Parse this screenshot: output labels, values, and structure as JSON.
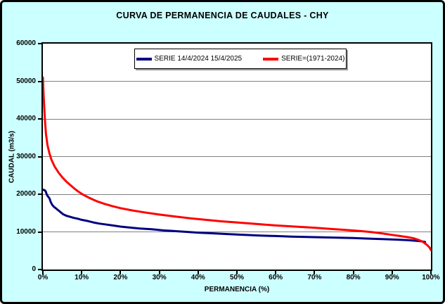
{
  "chart_data": {
    "type": "line",
    "title": "CURVA DE PERMANENCIA DE CAUDALES - CHY",
    "xlabel": "PERMANENCIA (%)",
    "ylabel": "CAUDAL (m3/s)",
    "xlim": [
      0,
      100
    ],
    "ylim": [
      0,
      60000
    ],
    "grid": "horizontal-only",
    "legend_position": "top-center-inside",
    "background_color": "#CCFFFF",
    "plot_background_color": "#FFFFFF",
    "gridline_color": "#808080",
    "x_ticks": [
      {
        "value": 0,
        "label": "0%"
      },
      {
        "value": 10,
        "label": "10%"
      },
      {
        "value": 20,
        "label": "20%"
      },
      {
        "value": 30,
        "label": "30%"
      },
      {
        "value": 40,
        "label": "40%"
      },
      {
        "value": 50,
        "label": "50%"
      },
      {
        "value": 60,
        "label": "60%"
      },
      {
        "value": 70,
        "label": "70%"
      },
      {
        "value": 80,
        "label": "80%"
      },
      {
        "value": 90,
        "label": "90%"
      },
      {
        "value": 100,
        "label": "100%"
      }
    ],
    "y_ticks": [
      {
        "value": 0,
        "label": "0"
      },
      {
        "value": 10000,
        "label": "10000"
      },
      {
        "value": 20000,
        "label": "20000"
      },
      {
        "value": 30000,
        "label": "30000"
      },
      {
        "value": 40000,
        "label": "40000"
      },
      {
        "value": 50000,
        "label": "50000"
      },
      {
        "value": 60000,
        "label": "60000"
      }
    ],
    "series": [
      {
        "name": "SERIE 14/4/2024 15/4/2025",
        "color": "#000080",
        "stroke_width": 3,
        "points": [
          [
            0,
            21200
          ],
          [
            0.4,
            21100
          ],
          [
            0.7,
            20800
          ],
          [
            0.9,
            20200
          ],
          [
            1.1,
            19700
          ],
          [
            1.4,
            19300
          ],
          [
            1.7,
            18900
          ],
          [
            2.0,
            18000
          ],
          [
            2.4,
            17200
          ],
          [
            2.8,
            16700
          ],
          [
            3.4,
            16200
          ],
          [
            4.0,
            15700
          ],
          [
            4.6,
            15200
          ],
          [
            5.2,
            14700
          ],
          [
            6.0,
            14300
          ],
          [
            7.0,
            14000
          ],
          [
            8.0,
            13700
          ],
          [
            9.0,
            13500
          ],
          [
            10,
            13200
          ],
          [
            11.5,
            12900
          ],
          [
            13,
            12500
          ],
          [
            14.5,
            12200
          ],
          [
            16,
            12000
          ],
          [
            18,
            11700
          ],
          [
            20,
            11400
          ],
          [
            22,
            11200
          ],
          [
            25,
            10900
          ],
          [
            28,
            10700
          ],
          [
            31,
            10400
          ],
          [
            34,
            10200
          ],
          [
            37,
            10000
          ],
          [
            40,
            9800
          ],
          [
            44,
            9600
          ],
          [
            48,
            9400
          ],
          [
            52,
            9200
          ],
          [
            56,
            9000
          ],
          [
            60,
            8900
          ],
          [
            64,
            8750
          ],
          [
            68,
            8650
          ],
          [
            72,
            8550
          ],
          [
            76,
            8450
          ],
          [
            80,
            8350
          ],
          [
            84,
            8200
          ],
          [
            88,
            8050
          ],
          [
            91,
            7950
          ],
          [
            94,
            7800
          ],
          [
            96,
            7650
          ],
          [
            97.5,
            7500
          ],
          [
            98.5,
            7300
          ]
        ]
      },
      {
        "name": "SERIE=(1971-2024)",
        "color": "#FF0000",
        "stroke_width": 3,
        "points": [
          [
            0,
            51000
          ],
          [
            0.2,
            46000
          ],
          [
            0.5,
            40000
          ],
          [
            0.8,
            36000
          ],
          [
            1.2,
            33000
          ],
          [
            1.7,
            30800
          ],
          [
            2.2,
            29200
          ],
          [
            3,
            27400
          ],
          [
            4,
            25800
          ],
          [
            5,
            24500
          ],
          [
            6,
            23400
          ],
          [
            7,
            22500
          ],
          [
            8,
            21600
          ],
          [
            9,
            20800
          ],
          [
            10,
            20100
          ],
          [
            12,
            19000
          ],
          [
            14,
            18100
          ],
          [
            16,
            17400
          ],
          [
            18,
            16800
          ],
          [
            20,
            16300
          ],
          [
            23,
            15700
          ],
          [
            26,
            15200
          ],
          [
            30,
            14600
          ],
          [
            34,
            14100
          ],
          [
            38,
            13600
          ],
          [
            42,
            13200
          ],
          [
            46,
            12800
          ],
          [
            50,
            12500
          ],
          [
            55,
            12100
          ],
          [
            60,
            11700
          ],
          [
            65,
            11400
          ],
          [
            70,
            11100
          ],
          [
            74,
            10800
          ],
          [
            78,
            10500
          ],
          [
            82,
            10200
          ],
          [
            85,
            9900
          ],
          [
            88,
            9500
          ],
          [
            90,
            9200
          ],
          [
            92,
            8900
          ],
          [
            94,
            8600
          ],
          [
            95.5,
            8300
          ],
          [
            97,
            7800
          ],
          [
            98,
            7300
          ],
          [
            99,
            6500
          ],
          [
            99.6,
            5900
          ],
          [
            100,
            5200
          ]
        ]
      }
    ]
  }
}
